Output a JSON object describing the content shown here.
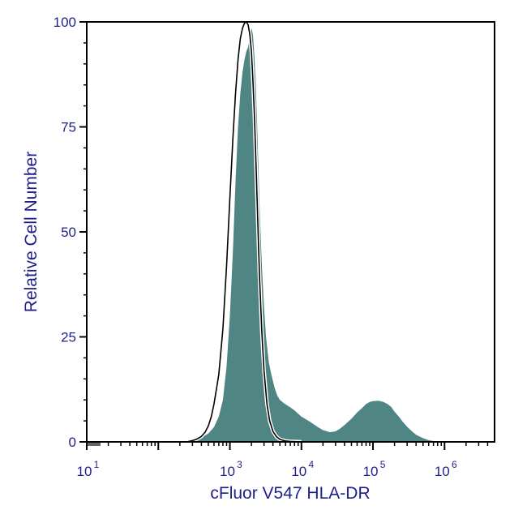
{
  "chart_data": {
    "type": "area",
    "xlabel": "cFluor V547 HLA-DR",
    "ylabel": "Relative Cell Number",
    "x_scale": "log",
    "xlim": [
      10,
      5000000
    ],
    "ylim": [
      0,
      100
    ],
    "x_ticks": [
      {
        "base": "10",
        "exp": "1",
        "value": 10
      },
      {
        "base": "10",
        "exp": "3",
        "value": 1000
      },
      {
        "base": "10",
        "exp": "4",
        "value": 10000
      },
      {
        "base": "10",
        "exp": "5",
        "value": 100000
      },
      {
        "base": "10",
        "exp": "6",
        "value": 1000000
      }
    ],
    "y_ticks": [
      "0",
      "25",
      "50",
      "75",
      "100"
    ],
    "grid": false,
    "series": [
      {
        "style": "filled",
        "color": "#4f8583",
        "x": [
          250,
          320,
          400,
          500,
          600,
          700,
          800,
          900,
          1000,
          1100,
          1200,
          1300,
          1400,
          1500,
          1600,
          1700,
          1800,
          1900,
          2000,
          2100,
          2200,
          2300,
          2400,
          2500,
          2600,
          2800,
          3000,
          3200,
          3500,
          3800,
          4200,
          4600,
          5000,
          5600,
          6300,
          7000,
          8000,
          9000,
          10000,
          12000,
          14000,
          17000,
          20000,
          25000,
          30000,
          35000,
          40000,
          50000,
          60000,
          70000,
          80000,
          90000,
          100000,
          120000,
          140000,
          160000,
          180000,
          200000,
          230000,
          260000,
          300000,
          350000,
          400000,
          500000,
          600000,
          750000,
          900000
        ],
        "y": [
          0,
          0.3,
          1,
          2,
          3.5,
          6,
          10,
          18,
          30,
          45,
          62,
          75,
          83,
          88,
          91,
          93,
          94,
          96,
          98.5,
          97,
          92,
          85,
          76,
          66,
          56,
          42,
          32,
          25,
          19,
          16,
          13,
          11,
          10,
          9.3,
          8.7,
          8.2,
          7.5,
          6.7,
          6,
          5.2,
          4.5,
          3.5,
          2.8,
          2.3,
          2.5,
          3.2,
          4,
          5.5,
          7,
          8,
          9,
          9.5,
          9.7,
          9.8,
          9.5,
          9,
          8.3,
          7.2,
          6,
          4.8,
          3.6,
          2.5,
          1.7,
          0.9,
          0.4,
          0.1,
          0
        ]
      },
      {
        "style": "outline",
        "color": "#000000",
        "x": [
          250,
          300,
          350,
          400,
          450,
          500,
          550,
          600,
          700,
          800,
          900,
          1000,
          1100,
          1200,
          1300,
          1400,
          1500,
          1600,
          1700,
          1800,
          1900,
          2000,
          2100,
          2200,
          2300,
          2400,
          2500,
          2600,
          2800,
          3000,
          3300,
          3600,
          4000,
          4500,
          5000,
          6000,
          7000,
          10000
        ],
        "y": [
          0,
          0.3,
          0.7,
          1.3,
          2.3,
          3.8,
          6,
          9,
          16,
          27,
          42,
          58,
          72,
          83,
          91,
          96,
          98.5,
          99.7,
          100,
          99.3,
          97,
          93,
          86,
          78,
          68,
          58,
          48,
          39,
          26,
          17,
          9,
          5,
          2.5,
          1.2,
          0.6,
          0.2,
          0.1,
          0
        ]
      }
    ]
  }
}
